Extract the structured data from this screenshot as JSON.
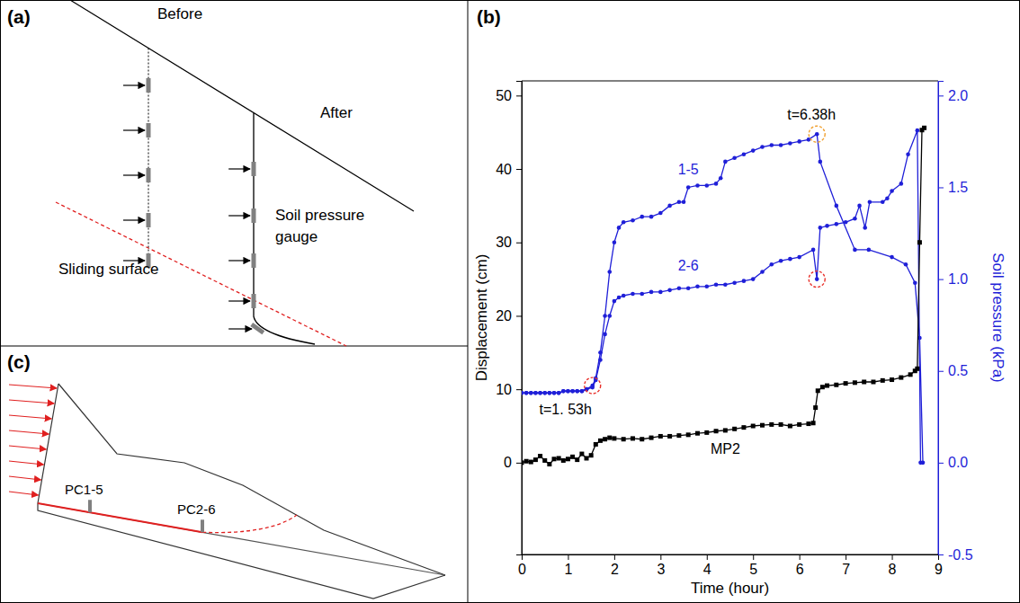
{
  "chart_data": {
    "type": "line",
    "panel_label": "(b)",
    "x_label": "Time (hour)",
    "y_label": "Displacement (cm)",
    "y2_label": "Soil pressure (kPa)",
    "xlim": [
      0,
      9
    ],
    "xticks": [
      0,
      1,
      2,
      3,
      4,
      5,
      6,
      7,
      8,
      9
    ],
    "ylim": [
      -12.5,
      52
    ],
    "yticks": [
      0,
      10,
      20,
      30,
      40,
      50
    ],
    "y2lim": [
      -0.5,
      2.08
    ],
    "y2ticks": [
      -0.5,
      {
        "value": 0,
        "label": "0.0"
      },
      0.5,
      {
        "value": 1,
        "label": "1.0"
      },
      1.5,
      {
        "value": 2,
        "label": "2.0"
      }
    ],
    "grid": false,
    "series": [
      {
        "name": "1-5",
        "color": "#1f1fd8",
        "axis": "y2",
        "marker": "circle",
        "line_style": "solid",
        "x": [
          0,
          0.1,
          0.2,
          0.3,
          0.4,
          0.5,
          0.6,
          0.7,
          0.8,
          0.9,
          1.0,
          1.1,
          1.2,
          1.3,
          1.4,
          1.53,
          1.6,
          1.7,
          1.8,
          1.9,
          2.0,
          2.1,
          2.2,
          2.4,
          2.6,
          2.8,
          3.0,
          3.2,
          3.4,
          3.5,
          3.6,
          3.8,
          4.0,
          4.2,
          4.3,
          4.4,
          4.6,
          4.8,
          5.0,
          5.2,
          5.4,
          5.6,
          5.8,
          6.0,
          6.2,
          6.38,
          6.45,
          6.8,
          7.2,
          7.5,
          8.0,
          8.3,
          8.5,
          8.6,
          8.67
        ],
        "values": [
          0.38,
          0.38,
          0.38,
          0.38,
          0.38,
          0.38,
          0.38,
          0.38,
          0.38,
          0.39,
          0.39,
          0.39,
          0.39,
          0.39,
          0.4,
          0.42,
          0.46,
          0.6,
          0.8,
          1.04,
          1.2,
          1.28,
          1.31,
          1.32,
          1.34,
          1.34,
          1.36,
          1.4,
          1.42,
          1.42,
          1.5,
          1.51,
          1.51,
          1.52,
          1.55,
          1.64,
          1.66,
          1.68,
          1.7,
          1.72,
          1.73,
          1.73,
          1.74,
          1.75,
          1.76,
          1.79,
          1.64,
          1.4,
          1.16,
          1.16,
          1.12,
          1.08,
          0.98,
          0.68,
          0.0
        ]
      },
      {
        "name": "2-6",
        "color": "#1f1fd8",
        "axis": "y2",
        "marker": "circle",
        "line_style": "solid",
        "x": [
          0,
          0.1,
          0.2,
          0.3,
          0.4,
          0.5,
          0.6,
          0.7,
          0.8,
          0.9,
          1.0,
          1.1,
          1.2,
          1.3,
          1.4,
          1.53,
          1.6,
          1.7,
          1.8,
          1.9,
          2.0,
          2.1,
          2.2,
          2.4,
          2.6,
          2.8,
          3.0,
          3.2,
          3.4,
          3.6,
          3.8,
          4.0,
          4.2,
          4.4,
          4.6,
          4.8,
          5.0,
          5.2,
          5.4,
          5.6,
          5.8,
          6.0,
          6.3,
          6.38,
          6.45,
          6.6,
          6.8,
          7.0,
          7.2,
          7.3,
          7.42,
          7.52,
          7.8,
          7.9,
          8.0,
          8.2,
          8.35,
          8.55,
          8.62
        ],
        "values": [
          0.38,
          0.38,
          0.38,
          0.38,
          0.38,
          0.38,
          0.38,
          0.38,
          0.38,
          0.39,
          0.39,
          0.39,
          0.39,
          0.39,
          0.4,
          0.41,
          0.45,
          0.56,
          0.7,
          0.8,
          0.88,
          0.9,
          0.91,
          0.92,
          0.92,
          0.93,
          0.93,
          0.94,
          0.95,
          0.95,
          0.96,
          0.96,
          0.97,
          0.97,
          0.98,
          0.99,
          1.0,
          1.04,
          1.08,
          1.1,
          1.11,
          1.12,
          1.16,
          1.0,
          1.28,
          1.29,
          1.3,
          1.31,
          1.33,
          1.4,
          1.28,
          1.42,
          1.42,
          1.44,
          1.48,
          1.52,
          1.68,
          1.81,
          0.0
        ]
      },
      {
        "name": "MP2",
        "color": "#000000",
        "marker": "square",
        "line_style": "solid",
        "x": [
          0,
          0.1,
          0.2,
          0.3,
          0.4,
          0.5,
          0.6,
          0.7,
          0.8,
          0.9,
          1.0,
          1.1,
          1.2,
          1.3,
          1.4,
          1.5,
          1.6,
          1.7,
          1.8,
          1.9,
          2.0,
          2.2,
          2.4,
          2.6,
          2.8,
          3.0,
          3.2,
          3.4,
          3.6,
          3.8,
          4.0,
          4.2,
          4.4,
          4.6,
          4.8,
          5.0,
          5.2,
          5.4,
          5.6,
          5.8,
          6.0,
          6.2,
          6.3,
          6.35,
          6.4,
          6.5,
          6.6,
          6.8,
          7.0,
          7.2,
          7.4,
          7.6,
          7.8,
          8.0,
          8.2,
          8.4,
          8.5,
          8.55,
          8.6,
          8.65,
          8.7
        ],
        "values": [
          0,
          0.2,
          0.1,
          0.4,
          0.9,
          0.3,
          -0.2,
          0.5,
          0.6,
          0.3,
          0.5,
          0.8,
          0.4,
          1.2,
          0.6,
          1.0,
          2.5,
          3.0,
          3.2,
          3.4,
          3.3,
          3.2,
          3.3,
          3.2,
          3.4,
          3.6,
          3.6,
          3.7,
          3.8,
          4.0,
          4.1,
          4.3,
          4.4,
          4.6,
          4.8,
          5.0,
          5.1,
          5.2,
          5.2,
          5.0,
          5.2,
          5.3,
          5.4,
          7.5,
          9.8,
          10.3,
          10.5,
          10.6,
          10.8,
          10.9,
          11.0,
          11.0,
          11.2,
          11.3,
          11.6,
          12.0,
          12.5,
          12.8,
          30.0,
          45.3,
          45.6
        ]
      }
    ],
    "annotations": [
      {
        "text": "t=1. 53h",
        "x": 1.53,
        "y": 0.42,
        "axis": "y2",
        "color": "#e8302a"
      },
      {
        "text": "t=6.38h",
        "x": 6.38,
        "y": 1.79,
        "axis": "y2",
        "color": "#f0a030"
      }
    ],
    "highlights": [
      {
        "x": 6.38,
        "y": 1.0,
        "axis": "y2",
        "color": "#e8302a"
      }
    ]
  },
  "diagrams": {
    "a": {
      "label": "(a)",
      "before": "Before",
      "after": "After",
      "gauge": [
        "Soil pressure",
        "gauge"
      ],
      "sliding_surface": "Sliding surface"
    },
    "c": {
      "label": "(c)",
      "gauges": [
        "PC1-5",
        "PC2-6"
      ]
    }
  }
}
